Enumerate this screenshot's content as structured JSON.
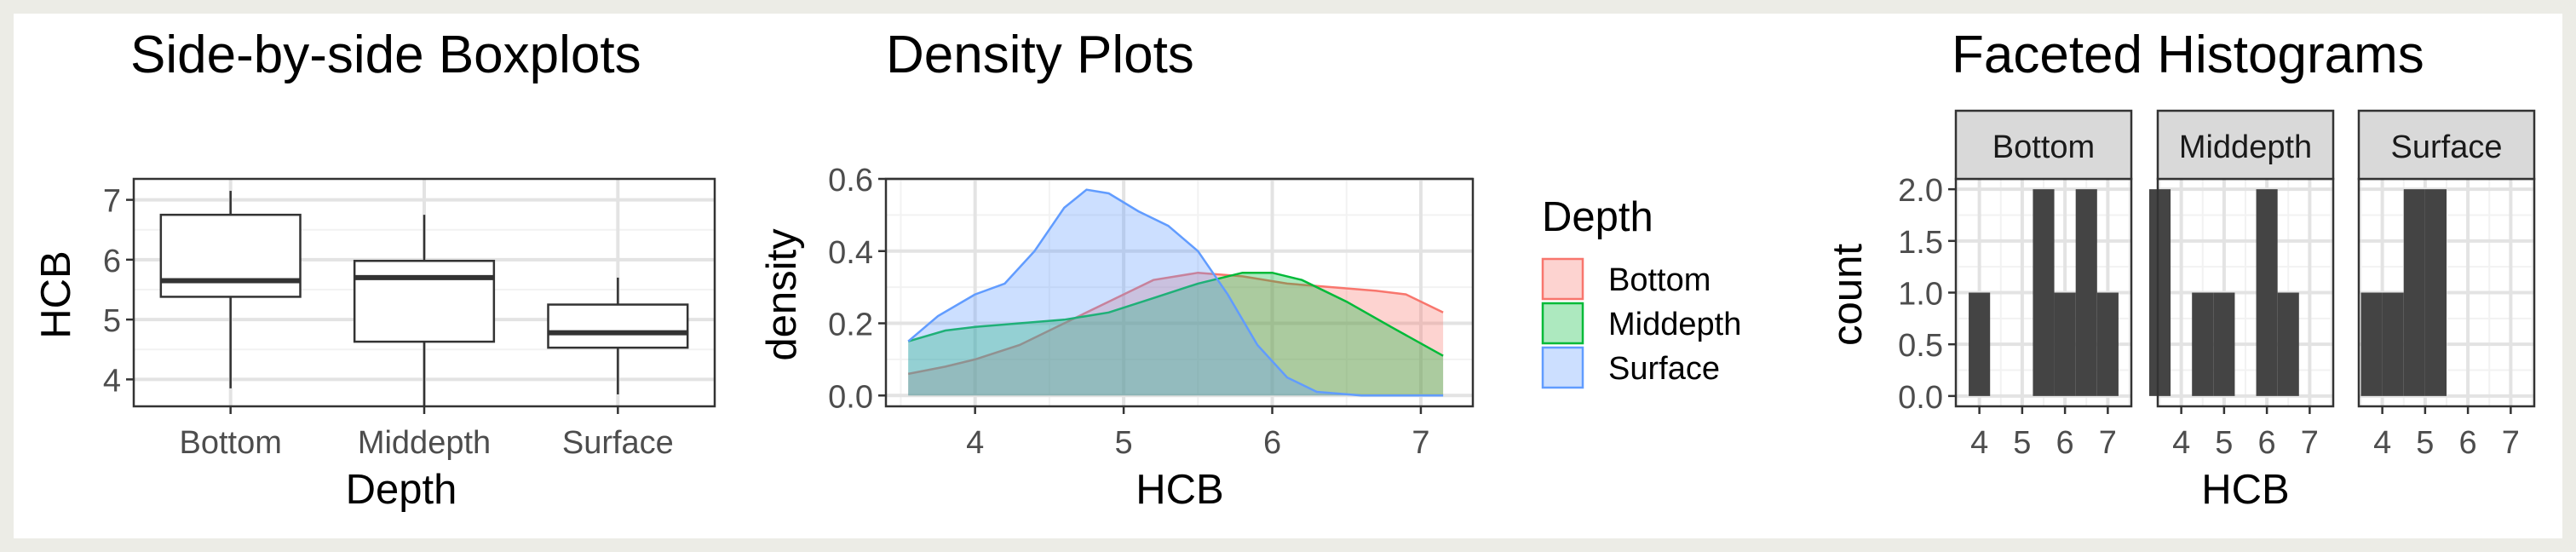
{
  "colors": {
    "background": "#ffffff",
    "outer_frame": "#ecece6",
    "grid_major": "#e3e3e3",
    "grid_minor": "#f2f2f2",
    "panel_border": "#333333",
    "strip_fill": "#d9d9d9",
    "bottom": "#f8766d",
    "middepth": "#00ba38",
    "surface": "#619cff",
    "histogram_bar": "#444444"
  },
  "chart_data": [
    {
      "type": "boxplot",
      "title": "Side-by-side Boxplots",
      "xlabel": "Depth",
      "ylabel": "HCB",
      "categories": [
        "Bottom",
        "Middepth",
        "Surface"
      ],
      "boxes": [
        {
          "category": "Bottom",
          "min": 3.85,
          "q1": 5.38,
          "median": 5.65,
          "q3": 6.75,
          "max": 7.15
        },
        {
          "category": "Middepth",
          "min": 3.55,
          "q1": 4.63,
          "median": 5.7,
          "q3": 5.98,
          "max": 6.75
        },
        {
          "category": "Surface",
          "min": 3.75,
          "q1": 4.53,
          "median": 4.78,
          "q3": 5.25,
          "max": 5.7
        }
      ],
      "ylim": [
        3.55,
        7.35
      ],
      "yticks": [
        4,
        5,
        6,
        7
      ],
      "grid": true
    },
    {
      "type": "area",
      "title": "Density Plots",
      "xlabel": "HCB",
      "ylabel": "density",
      "legend_title": "Depth",
      "legend_position": "right",
      "xlim": [
        3.4,
        7.35
      ],
      "ylim": [
        -0.03,
        0.6
      ],
      "xticks": [
        4,
        5,
        6,
        7
      ],
      "yticks": [
        0.0,
        0.2,
        0.4,
        0.6
      ],
      "ytick_labels": [
        "0.0",
        "0.2",
        "0.4",
        "0.6"
      ],
      "grid": true,
      "series": [
        {
          "name": "Bottom",
          "color": "#f8766d",
          "x": [
            3.55,
            3.8,
            4.0,
            4.3,
            4.6,
            4.9,
            5.2,
            5.5,
            5.8,
            6.1,
            6.4,
            6.7,
            6.9,
            7.15
          ],
          "y": [
            0.06,
            0.08,
            0.1,
            0.14,
            0.2,
            0.26,
            0.32,
            0.34,
            0.33,
            0.31,
            0.3,
            0.29,
            0.28,
            0.23
          ]
        },
        {
          "name": "Middepth",
          "color": "#00ba38",
          "x": [
            3.55,
            3.8,
            4.0,
            4.3,
            4.6,
            4.9,
            5.2,
            5.5,
            5.8,
            6.0,
            6.2,
            6.5,
            6.8,
            7.15
          ],
          "y": [
            0.15,
            0.18,
            0.19,
            0.2,
            0.21,
            0.23,
            0.27,
            0.31,
            0.34,
            0.34,
            0.32,
            0.26,
            0.19,
            0.11
          ]
        },
        {
          "name": "Surface",
          "color": "#619cff",
          "x": [
            3.55,
            3.75,
            4.0,
            4.2,
            4.4,
            4.6,
            4.75,
            4.9,
            5.1,
            5.3,
            5.5,
            5.7,
            5.9,
            6.1,
            6.3,
            6.6,
            7.15
          ],
          "y": [
            0.15,
            0.22,
            0.28,
            0.31,
            0.4,
            0.52,
            0.57,
            0.56,
            0.51,
            0.47,
            0.4,
            0.28,
            0.14,
            0.05,
            0.01,
            0.0,
            0.0
          ]
        }
      ]
    },
    {
      "type": "bar",
      "title": "Faceted Histograms",
      "xlabel": "HCB",
      "ylabel": "count",
      "xlim": [
        3.45,
        7.55
      ],
      "ylim": [
        -0.1,
        2.1
      ],
      "xticks": [
        4,
        5,
        6,
        7
      ],
      "yticks": [
        0.0,
        0.5,
        1.0,
        1.5,
        2.0
      ],
      "ytick_labels": [
        "0.0",
        "0.5",
        "1.0",
        "1.5",
        "2.0"
      ],
      "grid": true,
      "bin_width": 0.5,
      "facets": [
        {
          "name": "Bottom",
          "bins": [
            {
              "x": 4.0,
              "count": 1
            },
            {
              "x": 5.5,
              "count": 2
            },
            {
              "x": 6.0,
              "count": 1
            },
            {
              "x": 6.5,
              "count": 2
            },
            {
              "x": 7.0,
              "count": 1
            }
          ]
        },
        {
          "name": "Middepth",
          "bins": [
            {
              "x": 3.5,
              "count": 2
            },
            {
              "x": 4.5,
              "count": 1
            },
            {
              "x": 5.0,
              "count": 1
            },
            {
              "x": 6.0,
              "count": 2
            },
            {
              "x": 6.5,
              "count": 1
            }
          ]
        },
        {
          "name": "Surface",
          "bins": [
            {
              "x": 3.75,
              "count": 1
            },
            {
              "x": 4.25,
              "count": 1
            },
            {
              "x": 4.75,
              "count": 2
            },
            {
              "x": 5.25,
              "count": 2
            }
          ]
        }
      ]
    }
  ]
}
